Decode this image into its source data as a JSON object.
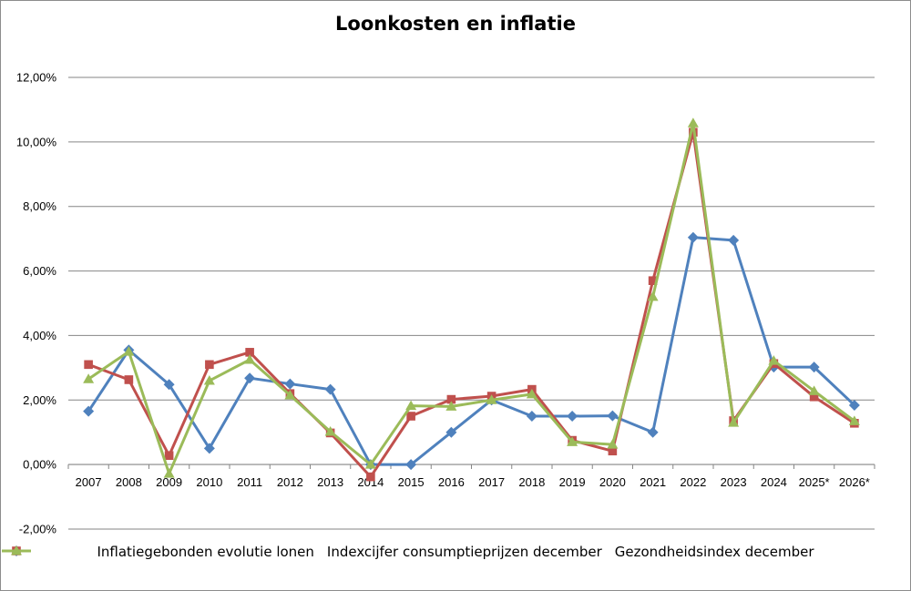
{
  "chart_data": {
    "type": "line",
    "title": "Loonkosten en inflatie",
    "xlabel": "",
    "ylabel": "",
    "categories": [
      "2007",
      "2008",
      "2009",
      "2010",
      "2011",
      "2012",
      "2013",
      "2014",
      "2015",
      "2016",
      "2017",
      "2018",
      "2019",
      "2020",
      "2021",
      "2022",
      "2023",
      "2024",
      "2025*",
      "2026*"
    ],
    "ylim": [
      -2,
      12
    ],
    "yticks": [
      -2,
      0,
      2,
      4,
      6,
      8,
      10,
      12
    ],
    "ytick_labels": [
      "-2,00%",
      "0,00%",
      "2,00%",
      "4,00%",
      "6,00%",
      "8,00%",
      "10,00%",
      "12,00%"
    ],
    "grid": true,
    "legend_position": "bottom",
    "series": [
      {
        "name": "Inflatiegebonden evolutie lonen",
        "color": "#4f81bd",
        "marker": "diamond",
        "values": [
          1.65,
          3.55,
          2.48,
          0.5,
          2.68,
          2.5,
          2.33,
          0.0,
          0.0,
          1.0,
          2.0,
          1.5,
          1.5,
          1.51,
          1.0,
          7.04,
          6.95,
          3.02,
          3.02,
          1.84
        ]
      },
      {
        "name": "Indexcijfer consumptieprijzen december",
        "color": "#c0504d",
        "marker": "square",
        "values": [
          3.1,
          2.63,
          0.28,
          3.1,
          3.48,
          2.2,
          0.98,
          -0.38,
          1.5,
          2.02,
          2.12,
          2.33,
          0.75,
          0.42,
          5.7,
          10.3,
          1.36,
          3.13,
          2.1,
          1.28
        ]
      },
      {
        "name": "Gezondheidsindex december",
        "color": "#9bbb59",
        "marker": "triangle",
        "values": [
          2.65,
          3.5,
          -0.28,
          2.6,
          3.25,
          2.15,
          1.02,
          0.0,
          1.82,
          1.8,
          2.0,
          2.18,
          0.7,
          0.62,
          5.2,
          10.58,
          1.3,
          3.22,
          2.28,
          1.35
        ]
      }
    ]
  }
}
